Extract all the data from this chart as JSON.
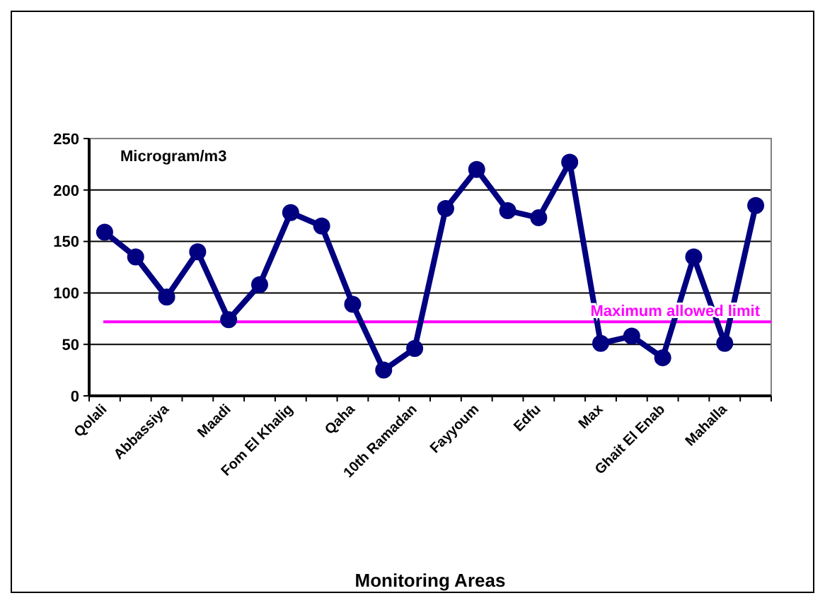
{
  "chart_data": {
    "type": "line",
    "xlabel": "Monitoring Areas",
    "annotations": [
      "Microgram/m3"
    ],
    "categories": [
      "Qolali",
      null,
      "Abbassiya",
      null,
      "Maadi",
      null,
      "Fom El Khalig",
      null,
      "Qaha",
      null,
      "10th Ramadan",
      null,
      "Fayyoum",
      null,
      "Edfu",
      null,
      "Max",
      null,
      "Ghait El Enab",
      null,
      "Mahalla",
      null
    ],
    "series": [
      {
        "color": "#000080",
        "values": [
          159,
          135,
          96,
          140,
          74,
          108,
          178,
          165,
          89,
          25,
          46,
          182,
          220,
          180,
          173,
          227,
          51,
          58,
          37,
          135,
          51,
          185
        ]
      }
    ],
    "ylim": [
      0,
      250
    ],
    "yticks": [
      0,
      50,
      100,
      150,
      200,
      250
    ],
    "grid": "y",
    "marker": "circle",
    "line_style": "solid",
    "ref_lines": [
      {
        "axis": "y",
        "value": 72,
        "label": "Maximum allowed limit",
        "color": "#ff00ff"
      }
    ]
  }
}
